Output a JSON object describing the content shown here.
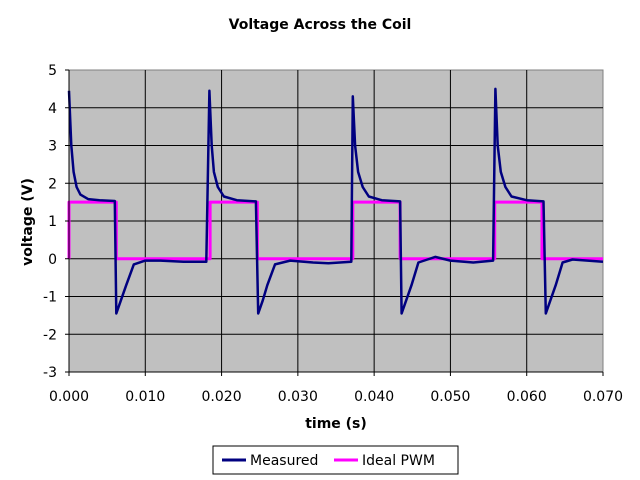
{
  "chart_data": {
    "type": "line",
    "title": "Voltage Across the Coil",
    "xlabel": "time (s)",
    "ylabel": "voltage (V)",
    "xlim": [
      0.0,
      0.07
    ],
    "ylim": [
      -3,
      5
    ],
    "x_ticks": [
      "0.000",
      "0.010",
      "0.020",
      "0.030",
      "0.040",
      "0.050",
      "0.060",
      "0.070"
    ],
    "y_ticks": [
      "5",
      "4",
      "3",
      "2",
      "1",
      "0",
      "-1",
      "-2",
      "-3"
    ],
    "grid": true,
    "legend_position": "bottom",
    "series": [
      {
        "name": "Measured",
        "color": "#000080",
        "points": [
          [
            0.0,
            4.45
          ],
          [
            0.0003,
            3.0
          ],
          [
            0.0006,
            2.3
          ],
          [
            0.001,
            1.9
          ],
          [
            0.0015,
            1.7
          ],
          [
            0.0025,
            1.58
          ],
          [
            0.004,
            1.55
          ],
          [
            0.006,
            1.53
          ],
          [
            0.0062,
            -1.45
          ],
          [
            0.0068,
            -1.1
          ],
          [
            0.0075,
            -0.7
          ],
          [
            0.0085,
            -0.15
          ],
          [
            0.01,
            -0.05
          ],
          [
            0.012,
            -0.05
          ],
          [
            0.015,
            -0.08
          ],
          [
            0.018,
            -0.08
          ],
          [
            0.0184,
            4.45
          ],
          [
            0.0187,
            3.0
          ],
          [
            0.019,
            2.3
          ],
          [
            0.0195,
            1.9
          ],
          [
            0.0203,
            1.65
          ],
          [
            0.022,
            1.55
          ],
          [
            0.0245,
            1.52
          ],
          [
            0.0248,
            -1.45
          ],
          [
            0.0254,
            -1.1
          ],
          [
            0.026,
            -0.7
          ],
          [
            0.027,
            -0.15
          ],
          [
            0.029,
            -0.05
          ],
          [
            0.032,
            -0.1
          ],
          [
            0.034,
            -0.12
          ],
          [
            0.037,
            -0.08
          ],
          [
            0.0372,
            4.3
          ],
          [
            0.0375,
            3.0
          ],
          [
            0.0379,
            2.3
          ],
          [
            0.0385,
            1.9
          ],
          [
            0.0393,
            1.65
          ],
          [
            0.041,
            1.55
          ],
          [
            0.0434,
            1.52
          ],
          [
            0.0436,
            -1.45
          ],
          [
            0.0442,
            -1.1
          ],
          [
            0.0449,
            -0.7
          ],
          [
            0.0458,
            -0.1
          ],
          [
            0.047,
            -0.02
          ],
          [
            0.048,
            0.05
          ],
          [
            0.05,
            -0.05
          ],
          [
            0.053,
            -0.1
          ],
          [
            0.0556,
            -0.05
          ],
          [
            0.0559,
            4.5
          ],
          [
            0.0562,
            3.0
          ],
          [
            0.0566,
            2.3
          ],
          [
            0.0572,
            1.9
          ],
          [
            0.058,
            1.65
          ],
          [
            0.06,
            1.55
          ],
          [
            0.0622,
            1.52
          ],
          [
            0.0625,
            -1.45
          ],
          [
            0.0631,
            -1.1
          ],
          [
            0.0638,
            -0.7
          ],
          [
            0.0647,
            -0.1
          ],
          [
            0.066,
            -0.02
          ],
          [
            0.068,
            -0.05
          ],
          [
            0.07,
            -0.08
          ]
        ]
      },
      {
        "name": "Ideal PWM",
        "color": "#FF00FF",
        "points": [
          [
            0.0,
            0.0
          ],
          [
            0.0,
            1.5
          ],
          [
            0.0062,
            1.5
          ],
          [
            0.0062,
            0.0
          ],
          [
            0.0185,
            0.0
          ],
          [
            0.0185,
            1.5
          ],
          [
            0.0247,
            1.5
          ],
          [
            0.0247,
            0.0
          ],
          [
            0.0372,
            0.0
          ],
          [
            0.0372,
            1.5
          ],
          [
            0.0434,
            1.5
          ],
          [
            0.0434,
            0.0
          ],
          [
            0.0558,
            0.0
          ],
          [
            0.0558,
            1.5
          ],
          [
            0.062,
            1.5
          ],
          [
            0.062,
            0.0
          ],
          [
            0.07,
            0.0
          ]
        ]
      }
    ]
  }
}
